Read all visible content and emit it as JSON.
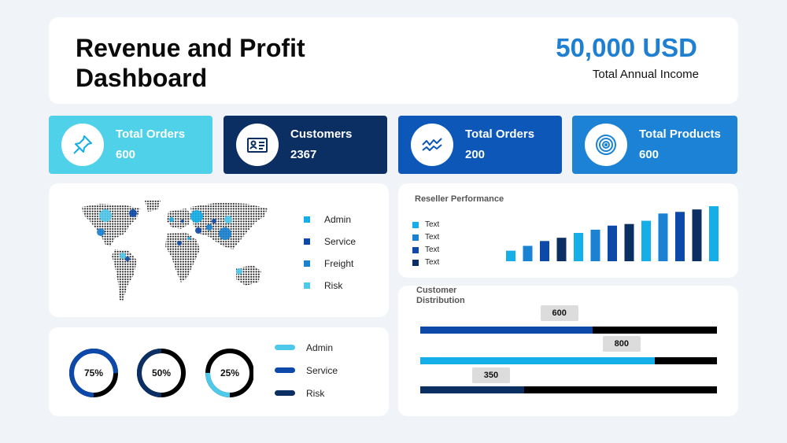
{
  "header": {
    "title": "Revenue and Profit Dashboard",
    "income_value": "50,000 USD",
    "income_label": "Total Annual Income"
  },
  "kpis": [
    {
      "title": "Total Orders",
      "value": "600",
      "icon": "pin-icon",
      "color": "#4fd1ea"
    },
    {
      "title": "Customers",
      "value": "2367",
      "icon": "id-card-icon",
      "color": "#0c2f63"
    },
    {
      "title": "Total Orders",
      "value": "200",
      "icon": "trend-icon",
      "color": "#0c57b8"
    },
    {
      "title": "Total Products",
      "value": "600",
      "icon": "target-icon",
      "color": "#1b82d6"
    }
  ],
  "map_legend": [
    {
      "label": "Admin",
      "color": "#14aee8"
    },
    {
      "label": "Service",
      "color": "#0c49a8"
    },
    {
      "label": "Freight",
      "color": "#1a82d2"
    },
    {
      "label": "Risk",
      "color": "#4fc9ea"
    }
  ],
  "donuts": [
    {
      "label": "75%",
      "value": 75,
      "color": "#0c49a8"
    },
    {
      "label": "50%",
      "value": 50,
      "color": "#0c2f63"
    },
    {
      "label": "25%",
      "value": 25,
      "color": "#4fc9ea"
    }
  ],
  "donut_legend": [
    {
      "label": "Admin",
      "color": "#4fc9ea"
    },
    {
      "label": "Service",
      "color": "#0c49a8"
    },
    {
      "label": "Risk",
      "color": "#0c2f63"
    }
  ],
  "reseller": {
    "title": "Reseller Performance",
    "legend": [
      {
        "label": "Text",
        "color": "#14aee8"
      },
      {
        "label": "Text",
        "color": "#1a82d2"
      },
      {
        "label": "Text",
        "color": "#0c49a8"
      },
      {
        "label": "Text",
        "color": "#0c2f63"
      }
    ],
    "bar_colors": [
      "#14aee8",
      "#1a82d2",
      "#0c49a8",
      "#0c2f63"
    ],
    "bar_values": [
      13,
      19,
      25,
      29,
      35,
      39,
      44,
      46,
      50,
      59,
      61,
      64,
      68
    ]
  },
  "distribution": {
    "title": "Customer Distribution",
    "rows": [
      {
        "label": "600",
        "value": 0.58,
        "color": "#0c49a8"
      },
      {
        "label": "800",
        "value": 0.79,
        "color": "#14aee8"
      },
      {
        "label": "350",
        "value": 0.35,
        "color": "#0c2f63"
      }
    ]
  }
}
